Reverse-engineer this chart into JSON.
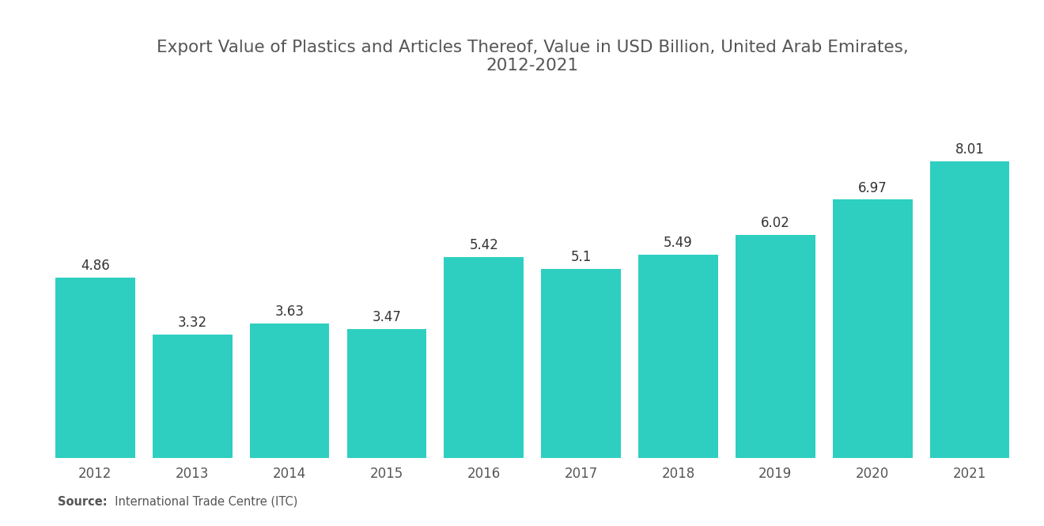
{
  "title": "Export Value of Plastics and Articles Thereof, Value in USD Billion, United Arab Emirates,\n2012-2021",
  "years": [
    2012,
    2013,
    2014,
    2015,
    2016,
    2017,
    2018,
    2019,
    2020,
    2021
  ],
  "values": [
    4.86,
    3.32,
    3.63,
    3.47,
    5.42,
    5.1,
    5.49,
    6.02,
    6.97,
    8.01
  ],
  "bar_color": "#2ECFC0",
  "background_color": "#ffffff",
  "title_fontsize": 15.5,
  "label_fontsize": 12,
  "tick_fontsize": 12,
  "source_bold": "Source:",
  "source_text": "  International Trade Centre (ITC)",
  "ylim": [
    0,
    9.8
  ],
  "bar_width": 0.82
}
